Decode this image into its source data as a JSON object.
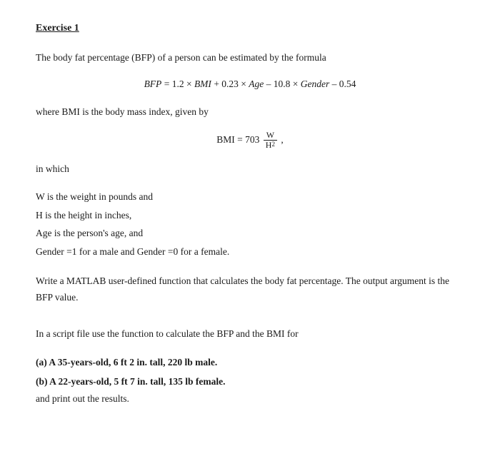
{
  "title": "Exercise 1",
  "intro": "The body fat percentage (BFP) of a person can be estimated by the formula",
  "bfp_formula": {
    "lhs": "BFP",
    "eq": " = ",
    "rhs_plain": "1.2 × ",
    "bmi": "BMI",
    "plus1": " + 0.23 × ",
    "age": "Age",
    "minus1": " – 10.8 × ",
    "gender": "Gender",
    "tail": " – 0.54"
  },
  "where_text": "where BMI is the body mass index, given by",
  "bmi_formula": {
    "lhs": "BMI = 703",
    "num": "W",
    "den_base": "H",
    "den_exp": "2",
    "tail": " ,"
  },
  "in_which": "in which",
  "defs": {
    "w": "W is the weight in pounds and",
    "h": "H is the height in inches,",
    "age": "Age is the person's age, and",
    "gender": "Gender =1 for a male and Gender =0 for a female."
  },
  "task1": "Write a MATLAB user-defined function that calculates the body fat percentage. The output argument is the BFP value.",
  "task2": "In a script file use the function to calculate the BFP and the BMI for",
  "case_a": "(a) A 35-years-old, 6 ft 2 in. tall, 220 lb male.",
  "case_b": "(b) A 22-years-old, 5 ft 7 in. tall, 135 lb female.",
  "outro": "and print out the results."
}
